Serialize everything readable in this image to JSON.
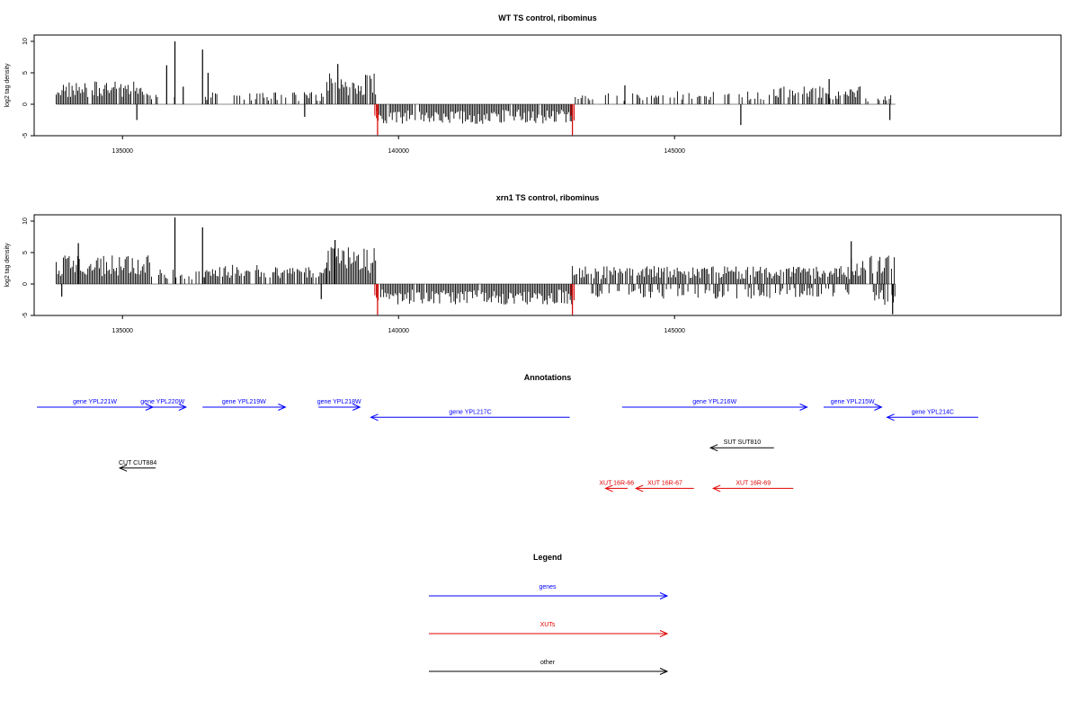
{
  "chart_data": [
    {
      "type": "bar",
      "title": "WT TS control, ribominus",
      "xlabel": "",
      "ylabel": "log2 tag density",
      "xlim": [
        133400,
        152000
      ],
      "ylim": [
        -5,
        11
      ],
      "x_ticks": [
        135000,
        140000,
        145000
      ],
      "x_tick_labels": [
        "135000",
        "140000",
        "145000"
      ],
      "y_ticks": [
        -5,
        0,
        5,
        10
      ],
      "y_tick_labels": [
        "-5",
        "0",
        "5",
        "10"
      ],
      "grid": false,
      "legend": "none",
      "colors": {
        "positive": "#000000",
        "negative": "#000000",
        "highlight": "#d40000"
      },
      "highlight_x": [
        139600,
        143150
      ],
      "regions": [
        {
          "x": [
            133800,
            135500
          ],
          "level": 2.8,
          "sign": 1,
          "density": 0.9
        },
        {
          "x": [
            135500,
            136500
          ],
          "level": 1.2,
          "sign": 1,
          "density": 0.25
        },
        {
          "x": [
            136500,
            138700
          ],
          "level": 1.5,
          "sign": 1,
          "density": 0.4
        },
        {
          "x": [
            138700,
            139600
          ],
          "level": 3.8,
          "sign": 1,
          "density": 0.9
        },
        {
          "x": [
            139600,
            143150
          ],
          "level": -2.4,
          "sign": -1,
          "density": 0.95
        },
        {
          "x": [
            143150,
            145000
          ],
          "level": 1.4,
          "sign": 1,
          "density": 0.35
        },
        {
          "x": [
            145000,
            146800
          ],
          "level": 1.6,
          "sign": 1,
          "density": 0.4
        },
        {
          "x": [
            146800,
            148500
          ],
          "level": 2.2,
          "sign": 1,
          "density": 0.6
        },
        {
          "x": [
            148500,
            149000
          ],
          "level": 1.2,
          "sign": 1,
          "density": 0.5
        }
      ],
      "spikes": [
        {
          "x": 135260,
          "y": -2.5
        },
        {
          "x": 135800,
          "y": 6.2
        },
        {
          "x": 135950,
          "y": 10.0
        },
        {
          "x": 136100,
          "y": 2.8
        },
        {
          "x": 136450,
          "y": 8.7
        },
        {
          "x": 136550,
          "y": 5.0
        },
        {
          "x": 138300,
          "y": -2.0
        },
        {
          "x": 138900,
          "y": 6.4
        },
        {
          "x": 139620,
          "y": -4.9
        },
        {
          "x": 143150,
          "y": -4.9
        },
        {
          "x": 144100,
          "y": 3.0
        },
        {
          "x": 146200,
          "y": -3.3
        },
        {
          "x": 147800,
          "y": 4.0
        },
        {
          "x": 148900,
          "y": -2.5
        }
      ]
    },
    {
      "type": "bar",
      "title": "xrn1 TS control, ribominus",
      "xlabel": "",
      "ylabel": "log2 tag density",
      "xlim": [
        133400,
        152000
      ],
      "ylim": [
        -5,
        11
      ],
      "x_ticks": [
        135000,
        140000,
        145000
      ],
      "x_tick_labels": [
        "135000",
        "140000",
        "145000"
      ],
      "y_ticks": [
        -5,
        0,
        5,
        10
      ],
      "y_tick_labels": [
        "-5",
        "0",
        "5",
        "10"
      ],
      "grid": false,
      "legend": "none",
      "colors": {
        "positive": "#000000",
        "negative": "#000000",
        "highlight": "#d40000"
      },
      "highlight_x": [
        139600,
        143150
      ],
      "regions": [
        {
          "x": [
            133800,
            135500
          ],
          "level": 3.5,
          "sign": 1,
          "density": 0.95
        },
        {
          "x": [
            135500,
            136500
          ],
          "level": 1.8,
          "sign": 1,
          "density": 0.3
        },
        {
          "x": [
            136500,
            138700
          ],
          "level": 2.5,
          "sign": 1,
          "density": 0.75
        },
        {
          "x": [
            138700,
            139600
          ],
          "level": 4.5,
          "sign": 1,
          "density": 0.95
        },
        {
          "x": [
            139600,
            143150
          ],
          "level": -2.5,
          "sign": -1,
          "density": 0.95
        },
        {
          "x": [
            143150,
            148200
          ],
          "level": 2.2,
          "sign": 1,
          "density": 0.9
        },
        {
          "x": [
            143500,
            148200
          ],
          "level": -1.8,
          "sign": -1,
          "density": 0.45
        },
        {
          "x": [
            148200,
            149000
          ],
          "level": 3.5,
          "sign": 1,
          "density": 0.8
        },
        {
          "x": [
            148600,
            149000
          ],
          "level": -2.6,
          "sign": -1,
          "density": 0.7
        }
      ],
      "spikes": [
        {
          "x": 133900,
          "y": -2.0
        },
        {
          "x": 134200,
          "y": 6.5
        },
        {
          "x": 135950,
          "y": 10.6
        },
        {
          "x": 136450,
          "y": 9.0
        },
        {
          "x": 138600,
          "y": -2.4
        },
        {
          "x": 138850,
          "y": 7.0
        },
        {
          "x": 139620,
          "y": -4.9
        },
        {
          "x": 143150,
          "y": -4.9
        },
        {
          "x": 148200,
          "y": 6.8
        },
        {
          "x": 148950,
          "y": -4.8
        }
      ]
    }
  ],
  "annotations": {
    "title": "Annotations",
    "xlim": [
      133400,
      152000
    ],
    "features": [
      {
        "label": "gene YPL221W",
        "start": 133450,
        "end": 135550,
        "strand": "+",
        "row": 0,
        "color": "#0000ff"
      },
      {
        "label": "gene YPL220W",
        "start": 135300,
        "end": 136150,
        "strand": "+",
        "row": 0,
        "color": "#0000ff"
      },
      {
        "label": "gene YPL219W",
        "start": 136450,
        "end": 137950,
        "strand": "+",
        "row": 0,
        "color": "#0000ff"
      },
      {
        "label": "gene YPL218W",
        "start": 138550,
        "end": 139300,
        "strand": "+",
        "row": 0,
        "color": "#0000ff"
      },
      {
        "label": "gene YPL217C",
        "start": 139500,
        "end": 143100,
        "strand": "-",
        "row": 1,
        "color": "#0000ff"
      },
      {
        "label": "gene YPL216W",
        "start": 144050,
        "end": 147400,
        "strand": "+",
        "row": 0,
        "color": "#0000ff"
      },
      {
        "label": "gene YPL215W",
        "start": 147700,
        "end": 148750,
        "strand": "+",
        "row": 0,
        "color": "#0000ff"
      },
      {
        "label": "gene YPL214C",
        "start": 148850,
        "end": 150500,
        "strand": "-",
        "row": 1,
        "color": "#0000ff"
      },
      {
        "label": "SUT SUT810",
        "start": 145650,
        "end": 146800,
        "strand": "-",
        "row": 4,
        "color": "#000000"
      },
      {
        "label": "CUT CUT884",
        "start": 134950,
        "end": 135600,
        "strand": "-",
        "row": 6,
        "color": "#000000"
      },
      {
        "label": "XUT 16R-66",
        "start": 143750,
        "end": 144150,
        "strand": "-",
        "row": 8,
        "color": "#e00000"
      },
      {
        "label": "XUT 16R-67",
        "start": 144300,
        "end": 145350,
        "strand": "-",
        "row": 8,
        "color": "#e00000"
      },
      {
        "label": "XUT 16R-69",
        "start": 145700,
        "end": 147150,
        "strand": "-",
        "row": 8,
        "color": "#e00000"
      }
    ]
  },
  "legend": {
    "title": "Legend",
    "items": [
      {
        "label": "genes",
        "color": "#0000ff"
      },
      {
        "label": "XUTs",
        "color": "#e00000"
      },
      {
        "label": "other",
        "color": "#000000"
      }
    ]
  }
}
